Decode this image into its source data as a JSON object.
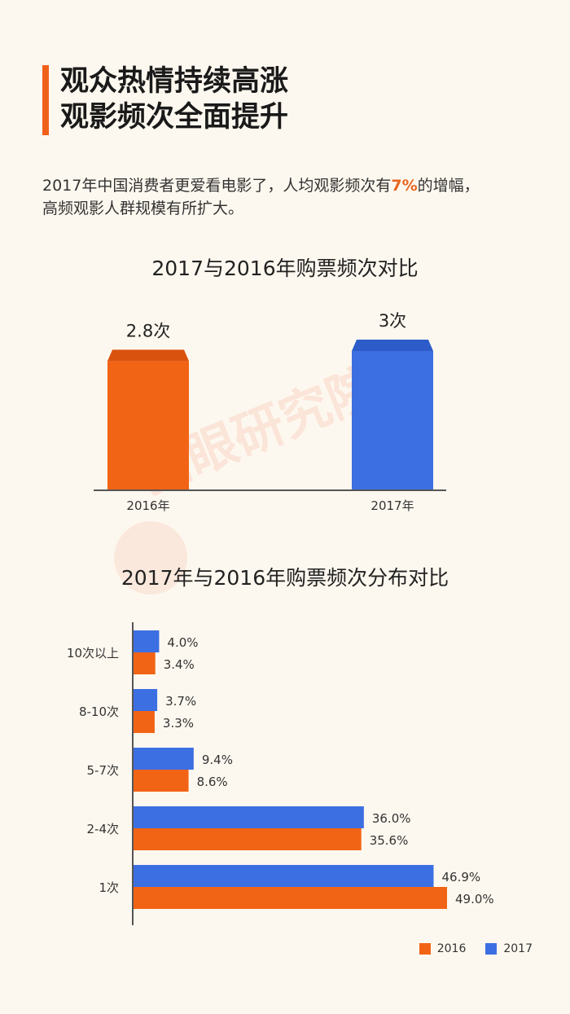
{
  "page": {
    "title_line1": "观众热情持续高涨",
    "title_line2": "观影频次全面提升",
    "intro_a": "2017年中国消费者更爱看电影了，人均观影频次有",
    "intro_hl": "7%",
    "intro_b": "的增幅，",
    "intro_c": "高频观影人群规模有所扩大。",
    "watermark": "猫眼研究院"
  },
  "colors": {
    "orange": "#f26415",
    "orange_top": "#d9530f",
    "blue": "#3c6fe2",
    "blue_top": "#2d5cc9"
  },
  "chart_data": [
    {
      "type": "bar",
      "title": "2017与2016年购票频次对比",
      "categories": [
        "2016年",
        "2017年"
      ],
      "values": [
        2.8,
        3
      ],
      "value_labels": [
        "2.8次",
        "3次"
      ],
      "ylim": [
        0,
        3
      ]
    },
    {
      "type": "bar",
      "orientation": "horizontal",
      "title": "2017年与2016年购票频次分布对比",
      "categories": [
        "10次以上",
        "8-10次",
        "5-7次",
        "2-4次",
        "1次"
      ],
      "series": [
        {
          "name": "2017",
          "values": [
            4.0,
            3.7,
            9.4,
            36.0,
            46.9
          ],
          "labels": [
            "4.0%",
            "3.7%",
            "9.4%",
            "36.0%",
            "46.9%"
          ]
        },
        {
          "name": "2016",
          "values": [
            3.4,
            3.3,
            8.6,
            35.6,
            49.0
          ],
          "labels": [
            "3.4%",
            "3.3%",
            "8.6%",
            "35.6%",
            "49.0%"
          ]
        }
      ],
      "xlim": [
        0,
        49
      ],
      "legend": [
        "2016",
        "2017"
      ]
    }
  ]
}
